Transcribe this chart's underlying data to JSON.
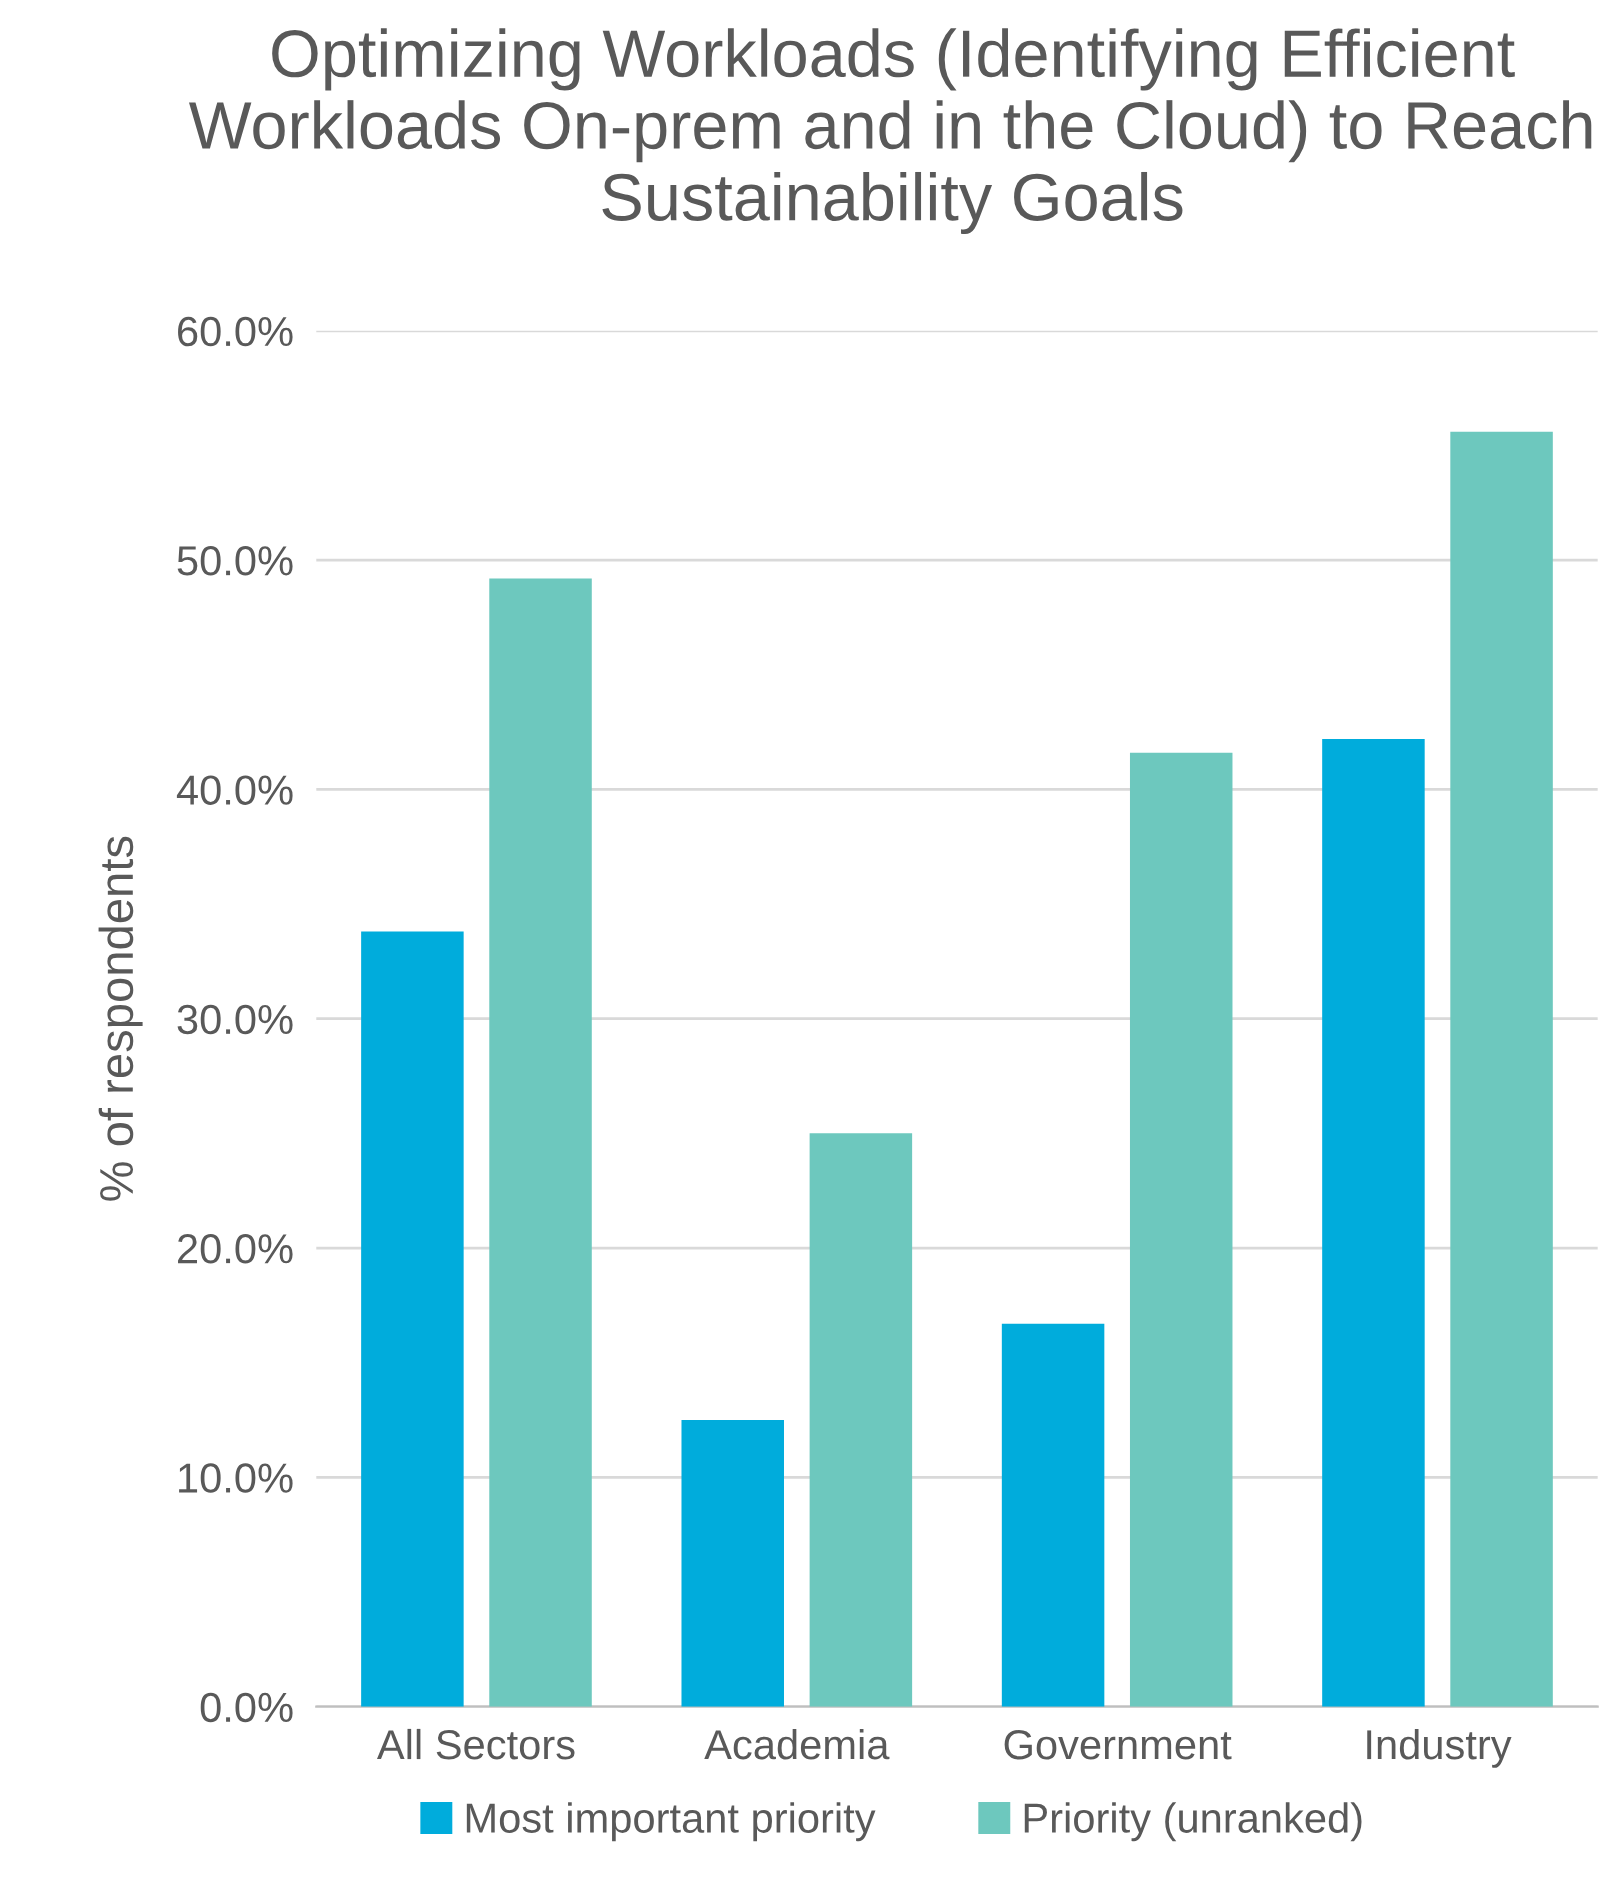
{
  "chart_data": {
    "type": "bar",
    "title": "Optimizing Workloads (Identifying Efficient Workloads On-prem and in the Cloud) to Reach Sustainability Goals",
    "ylabel": "% of respondents",
    "categories": [
      "All Sectors",
      "Academia",
      "Government",
      "Industry"
    ],
    "series": [
      {
        "name": "Most important priority",
        "color": "#00acdc",
        "values": [
          33.8,
          12.5,
          16.7,
          42.2
        ]
      },
      {
        "name": "Priority (unranked)",
        "color": "#6dc8be",
        "values": [
          49.2,
          25.0,
          41.6,
          55.6
        ]
      }
    ],
    "ylim": [
      0,
      60
    ],
    "yticks": [
      {
        "value": 0,
        "label": "0.0%"
      },
      {
        "value": 10,
        "label": "10.0%"
      },
      {
        "value": 20,
        "label": "20.0%"
      },
      {
        "value": 30,
        "label": "30.0%"
      },
      {
        "value": 40,
        "label": "40.0%"
      },
      {
        "value": 50,
        "label": "50.0%"
      },
      {
        "value": 60,
        "label": "60.0%"
      }
    ],
    "grid": "y",
    "legend": "bottom"
  }
}
